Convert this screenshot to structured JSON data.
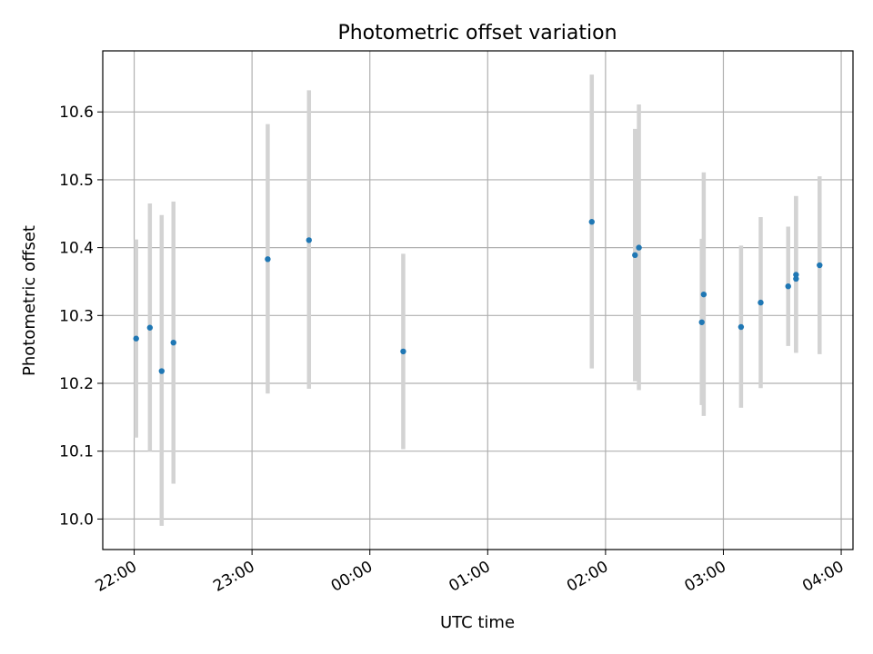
{
  "chart_data": {
    "type": "scatter",
    "title": "Photometric offset variation",
    "xlabel": "UTC time",
    "ylabel": "Photometric offset",
    "x_unit": "minutes",
    "x_ticks": [
      {
        "label": "22:00",
        "value": 0
      },
      {
        "label": "23:00",
        "value": 60
      },
      {
        "label": "00:00",
        "value": 120
      },
      {
        "label": "01:00",
        "value": 180
      },
      {
        "label": "02:00",
        "value": 240
      },
      {
        "label": "03:00",
        "value": 300
      },
      {
        "label": "04:00",
        "value": 360
      }
    ],
    "y_ticks": [
      "10.0",
      "10.1",
      "10.2",
      "10.3",
      "10.4",
      "10.5",
      "10.6"
    ],
    "xlim": [
      -16,
      366
    ],
    "ylim": [
      9.955,
      10.69
    ],
    "grid": true,
    "marker_color": "#1f77b4",
    "errorbar_color": "#d3d3d3",
    "points": [
      {
        "t": 1,
        "y": 10.266,
        "lo": 10.12,
        "hi": 10.412
      },
      {
        "t": 8,
        "y": 10.282,
        "lo": 10.1,
        "hi": 10.465
      },
      {
        "t": 14,
        "y": 10.218,
        "lo": 9.99,
        "hi": 10.448
      },
      {
        "t": 20,
        "y": 10.26,
        "lo": 10.052,
        "hi": 10.468
      },
      {
        "t": 68,
        "y": 10.383,
        "lo": 10.185,
        "hi": 10.582
      },
      {
        "t": 89,
        "y": 10.411,
        "lo": 10.192,
        "hi": 10.632
      },
      {
        "t": 137,
        "y": 10.247,
        "lo": 10.103,
        "hi": 10.391
      },
      {
        "t": 233,
        "y": 10.438,
        "lo": 10.222,
        "hi": 10.655
      },
      {
        "t": 255,
        "y": 10.389,
        "lo": 10.203,
        "hi": 10.575
      },
      {
        "t": 257,
        "y": 10.4,
        "lo": 10.19,
        "hi": 10.611
      },
      {
        "t": 289,
        "y": 10.29,
        "lo": 10.168,
        "hi": 10.413
      },
      {
        "t": 290,
        "y": 10.331,
        "lo": 10.152,
        "hi": 10.511
      },
      {
        "t": 309,
        "y": 10.283,
        "lo": 10.164,
        "hi": 10.403
      },
      {
        "t": 319,
        "y": 10.319,
        "lo": 10.193,
        "hi": 10.445
      },
      {
        "t": 333,
        "y": 10.343,
        "lo": 10.255,
        "hi": 10.431
      },
      {
        "t": 337,
        "y": 10.36,
        "lo": 10.245,
        "hi": 10.476
      },
      {
        "t": 337,
        "y": 10.354,
        "lo": 10.245,
        "hi": 10.476
      },
      {
        "t": 349,
        "y": 10.374,
        "lo": 10.243,
        "hi": 10.505
      }
    ]
  }
}
